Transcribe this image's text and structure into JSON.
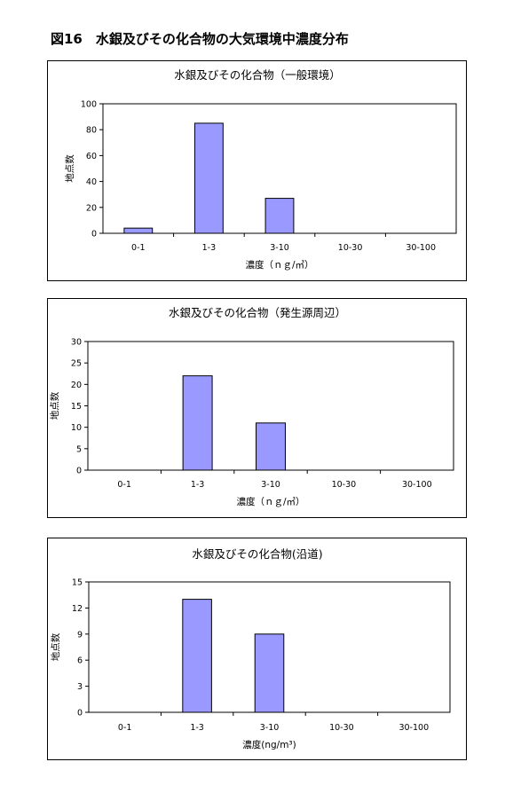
{
  "page_title": "図16　水銀及びその化合物の大気環境中濃度分布",
  "chart_data": [
    {
      "type": "bar",
      "title": "水銀及びその化合物（一般環境）",
      "xlabel": "濃度（ｎｇ/㎥）",
      "ylabel": "地点数",
      "categories": [
        "0-1",
        "1-3",
        "3-10",
        "10-30",
        "30-100"
      ],
      "values": [
        4,
        85,
        27,
        0,
        0
      ],
      "ylim": [
        0,
        100
      ],
      "yticks": [
        0,
        20,
        40,
        60,
        80,
        100
      ],
      "ytick_labels": [
        "0",
        "20",
        "40",
        "60",
        "80",
        "100"
      ],
      "bar_color": "#9999ff",
      "grid": false,
      "legend": "none"
    },
    {
      "type": "bar",
      "title": "水銀及びその化合物（発生源周辺）",
      "xlabel": "濃度（ｎｇ/㎥）",
      "ylabel": "地点数",
      "categories": [
        "0-1",
        "1-3",
        "3-10",
        "10-30",
        "30-100"
      ],
      "values": [
        0,
        22,
        11,
        0,
        0
      ],
      "ylim": [
        0,
        30
      ],
      "yticks": [
        0,
        5,
        10,
        15,
        20,
        25,
        30
      ],
      "ytick_labels": [
        "0",
        "5",
        "10",
        "15",
        "20",
        "25",
        "30"
      ],
      "bar_color": "#9999ff",
      "grid": false,
      "legend": "none"
    },
    {
      "type": "bar",
      "title": "水銀及びその化合物(沿道)",
      "xlabel": "濃度(ng/m³)",
      "ylabel": "地点数",
      "categories": [
        "0-1",
        "1-3",
        "3-10",
        "10-30",
        "30-100"
      ],
      "values": [
        0,
        13,
        9,
        0,
        0
      ],
      "ylim": [
        0,
        15
      ],
      "yticks": [
        0,
        3,
        6,
        9,
        12,
        15
      ],
      "ytick_labels": [
        "0",
        "3",
        "6",
        "9",
        "12",
        "15"
      ],
      "bar_color": "#9999ff",
      "grid": false,
      "legend": "none"
    }
  ]
}
